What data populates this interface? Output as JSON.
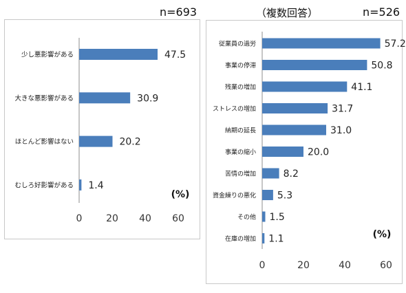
{
  "chart_data": [
    {
      "type": "bar",
      "orientation": "horizontal",
      "header_note": "n=693",
      "unit_label": "(%)",
      "categories": [
        "少し悪影響がある",
        "大きな悪影響がある",
        "ほとんど影響はない",
        "むしろ好影響がある"
      ],
      "values": [
        47.5,
        30.9,
        20.2,
        1.4
      ],
      "value_labels": [
        "47.5",
        "30.9",
        "20.2",
        "1.4"
      ],
      "x_ticks": [
        0,
        20,
        40,
        60
      ],
      "xlim": [
        0,
        60
      ],
      "bar_color": "#4a7ebb",
      "grid": false
    },
    {
      "type": "bar",
      "orientation": "horizontal",
      "subtitle": "（複数回答）",
      "header_note": "n=526",
      "unit_label": "(%)",
      "categories": [
        "従業員の過労",
        "事業の停滞",
        "残業の増加",
        "ストレスの増加",
        "納期の延長",
        "事業の縮小",
        "苦情の増加",
        "資金繰りの悪化",
        "その他",
        "在庫の増加"
      ],
      "values": [
        57.2,
        50.8,
        41.1,
        31.7,
        31.0,
        20.0,
        8.2,
        5.3,
        1.5,
        1.1
      ],
      "value_labels": [
        "57.2",
        "50.8",
        "41.1",
        "31.7",
        "31.0",
        "20.0",
        "8.2",
        "5.3",
        "1.5",
        "1.1"
      ],
      "x_ticks": [
        0,
        20,
        40,
        60
      ],
      "xlim": [
        0,
        60
      ],
      "bar_color": "#4a7ebb",
      "grid": false
    }
  ]
}
